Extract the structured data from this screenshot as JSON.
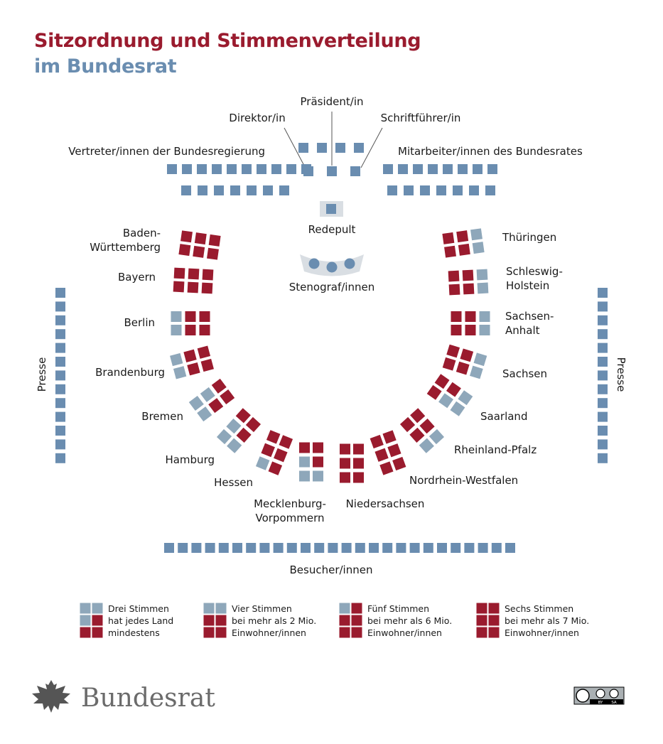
{
  "title": {
    "line1": "Sitzordnung und Stimmenverteilung",
    "line2": "im Bundesrat"
  },
  "colors": {
    "red": "#9a1b2e",
    "blue": "#6a8db0",
    "light_blue": "#8ea7ba",
    "podium_bg": "#d9dee3",
    "text": "#1a1a1a"
  },
  "front": {
    "director": "Direktor/in",
    "president": "Präsident/in",
    "secretary": "Schriftführer/in",
    "government": "Vertreter/innen der Bundesregierung",
    "staff": "Mitarbeiter/innen des Bundesrates",
    "lectern": "Redepult",
    "stenographers": "Stenograf/innen"
  },
  "press": {
    "left": "Presse",
    "right": "Presse"
  },
  "visitors": "Besucher/innen",
  "states": [
    {
      "name": "Baden-Württemberg",
      "lines": [
        "Baden-",
        "Württemberg"
      ],
      "votes": 6
    },
    {
      "name": "Bayern",
      "lines": [
        "Bayern"
      ],
      "votes": 6
    },
    {
      "name": "Berlin",
      "lines": [
        "Berlin"
      ],
      "votes": 4
    },
    {
      "name": "Brandenburg",
      "lines": [
        "Brandenburg"
      ],
      "votes": 4
    },
    {
      "name": "Bremen",
      "lines": [
        "Bremen"
      ],
      "votes": 3
    },
    {
      "name": "Hamburg",
      "lines": [
        "Hamburg"
      ],
      "votes": 3
    },
    {
      "name": "Hessen",
      "lines": [
        "Hessen"
      ],
      "votes": 5
    },
    {
      "name": "Mecklenburg-Vorpommern",
      "lines": [
        "Mecklenburg-",
        "Vorpommern"
      ],
      "votes": 3
    },
    {
      "name": "Niedersachsen",
      "lines": [
        "Niedersachsen"
      ],
      "votes": 6
    },
    {
      "name": "Nordrhein-Westfalen",
      "lines": [
        "Nordrhein-Westfalen"
      ],
      "votes": 6
    },
    {
      "name": "Rheinland-Pfalz",
      "lines": [
        "Rheinland-Pfalz"
      ],
      "votes": 4
    },
    {
      "name": "Saarland",
      "lines": [
        "Saarland"
      ],
      "votes": 3
    },
    {
      "name": "Sachsen",
      "lines": [
        "Sachsen"
      ],
      "votes": 4
    },
    {
      "name": "Sachsen-Anhalt",
      "lines": [
        "Sachsen-",
        "Anhalt"
      ],
      "votes": 4
    },
    {
      "name": "Schleswig-Holstein",
      "lines": [
        "Schleswig-",
        "Holstein"
      ],
      "votes": 4
    },
    {
      "name": "Thüringen",
      "lines": [
        "Thüringen"
      ],
      "votes": 4
    }
  ],
  "legend": [
    {
      "votes": 3,
      "lines": [
        "Drei Stimmen",
        "hat jedes Land",
        "mindestens"
      ]
    },
    {
      "votes": 4,
      "lines": [
        "Vier Stimmen",
        "bei mehr als 2 Mio.",
        "Einwohner/innen"
      ]
    },
    {
      "votes": 5,
      "lines": [
        "Fünf Stimmen",
        "bei mehr als 6 Mio.",
        "Einwohner/innen"
      ]
    },
    {
      "votes": 6,
      "lines": [
        "Sechs Stimmen",
        "bei mehr als 7 Mio.",
        "Einwohner/innen"
      ]
    }
  ],
  "logo": {
    "text": "Bundesrat",
    "eagle_icon": "federal-eagle-icon"
  },
  "license": {
    "icon": "cc-by-sa-icon",
    "small_text": [
      "BY",
      "SA"
    ]
  }
}
